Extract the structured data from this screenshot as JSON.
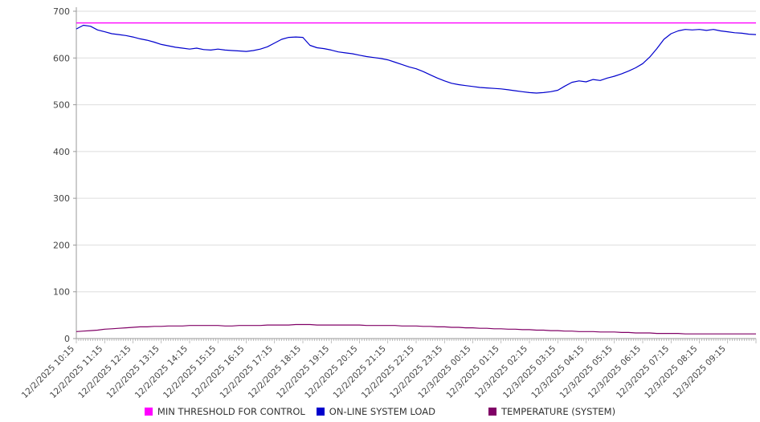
{
  "chart_data": {
    "type": "line",
    "ylim": [
      0,
      700
    ],
    "y_ticks": [
      0,
      100,
      200,
      300,
      400,
      500,
      600,
      700
    ],
    "grid": true,
    "legend_position": "bottom",
    "axis_color": "#999999",
    "grid_color": "#dddddd",
    "text_color": "#444444",
    "points_per_hour": 4,
    "x_tick_labels": [
      "12/2/2025 10:15",
      "12/2/2025 11:15",
      "12/2/2025 12:15",
      "12/2/2025 13:15",
      "12/2/2025 14:15",
      "12/2/2025 15:15",
      "12/2/2025 16:15",
      "12/2/2025 17:15",
      "12/2/2025 18:15",
      "12/2/2025 19:15",
      "12/2/2025 20:15",
      "12/2/2025 21:15",
      "12/2/2025 22:15",
      "12/2/2025 23:15",
      "12/3/2025 00:15",
      "12/3/2025 01:15",
      "12/3/2025 02:15",
      "12/3/2025 03:15",
      "12/3/2025 04:15",
      "12/3/2025 05:15",
      "12/3/2025 06:15",
      "12/3/2025 07:15",
      "12/3/2025 08:15",
      "12/3/2025 09:15"
    ],
    "series": [
      {
        "name": "MIN THRESHOLD FOR CONTROL",
        "color": "#ff00ff",
        "constant": 675
      },
      {
        "name": "ON-LINE SYSTEM LOAD",
        "color": "#0000cd",
        "values": [
          662,
          670,
          668,
          660,
          656,
          652,
          650,
          648,
          645,
          641,
          638,
          634,
          629,
          626,
          623,
          621,
          619,
          621,
          618,
          617,
          619,
          617,
          616,
          615,
          614,
          616,
          619,
          624,
          632,
          640,
          644,
          645,
          644,
          627,
          622,
          620,
          617,
          613,
          611,
          609,
          606,
          603,
          601,
          599,
          596,
          591,
          586,
          581,
          577,
          571,
          564,
          557,
          551,
          546,
          543,
          541,
          539,
          537,
          536,
          535,
          534,
          532,
          530,
          528,
          526,
          525,
          526,
          528,
          531,
          540,
          548,
          551,
          549,
          554,
          552,
          557,
          561,
          566,
          572,
          579,
          588,
          602,
          620,
          640,
          652,
          658,
          661,
          660,
          661,
          659,
          661,
          658,
          656,
          654,
          653,
          651,
          650
        ]
      },
      {
        "name": "TEMPERATURE (SYSTEM)",
        "color": "#800066",
        "values": [
          15,
          16,
          17,
          18,
          20,
          21,
          22,
          23,
          24,
          25,
          25,
          26,
          26,
          27,
          27,
          27,
          28,
          28,
          28,
          28,
          28,
          27,
          27,
          28,
          28,
          28,
          28,
          29,
          29,
          29,
          29,
          30,
          30,
          30,
          29,
          29,
          29,
          29,
          29,
          29,
          29,
          28,
          28,
          28,
          28,
          28,
          27,
          27,
          27,
          26,
          26,
          25,
          25,
          24,
          24,
          23,
          23,
          22,
          22,
          21,
          21,
          20,
          20,
          19,
          19,
          18,
          18,
          17,
          17,
          16,
          16,
          15,
          15,
          15,
          14,
          14,
          14,
          13,
          13,
          12,
          12,
          12,
          11,
          11,
          11,
          11,
          10,
          10,
          10,
          10,
          10,
          10,
          10,
          10,
          10,
          10,
          10
        ]
      }
    ]
  }
}
